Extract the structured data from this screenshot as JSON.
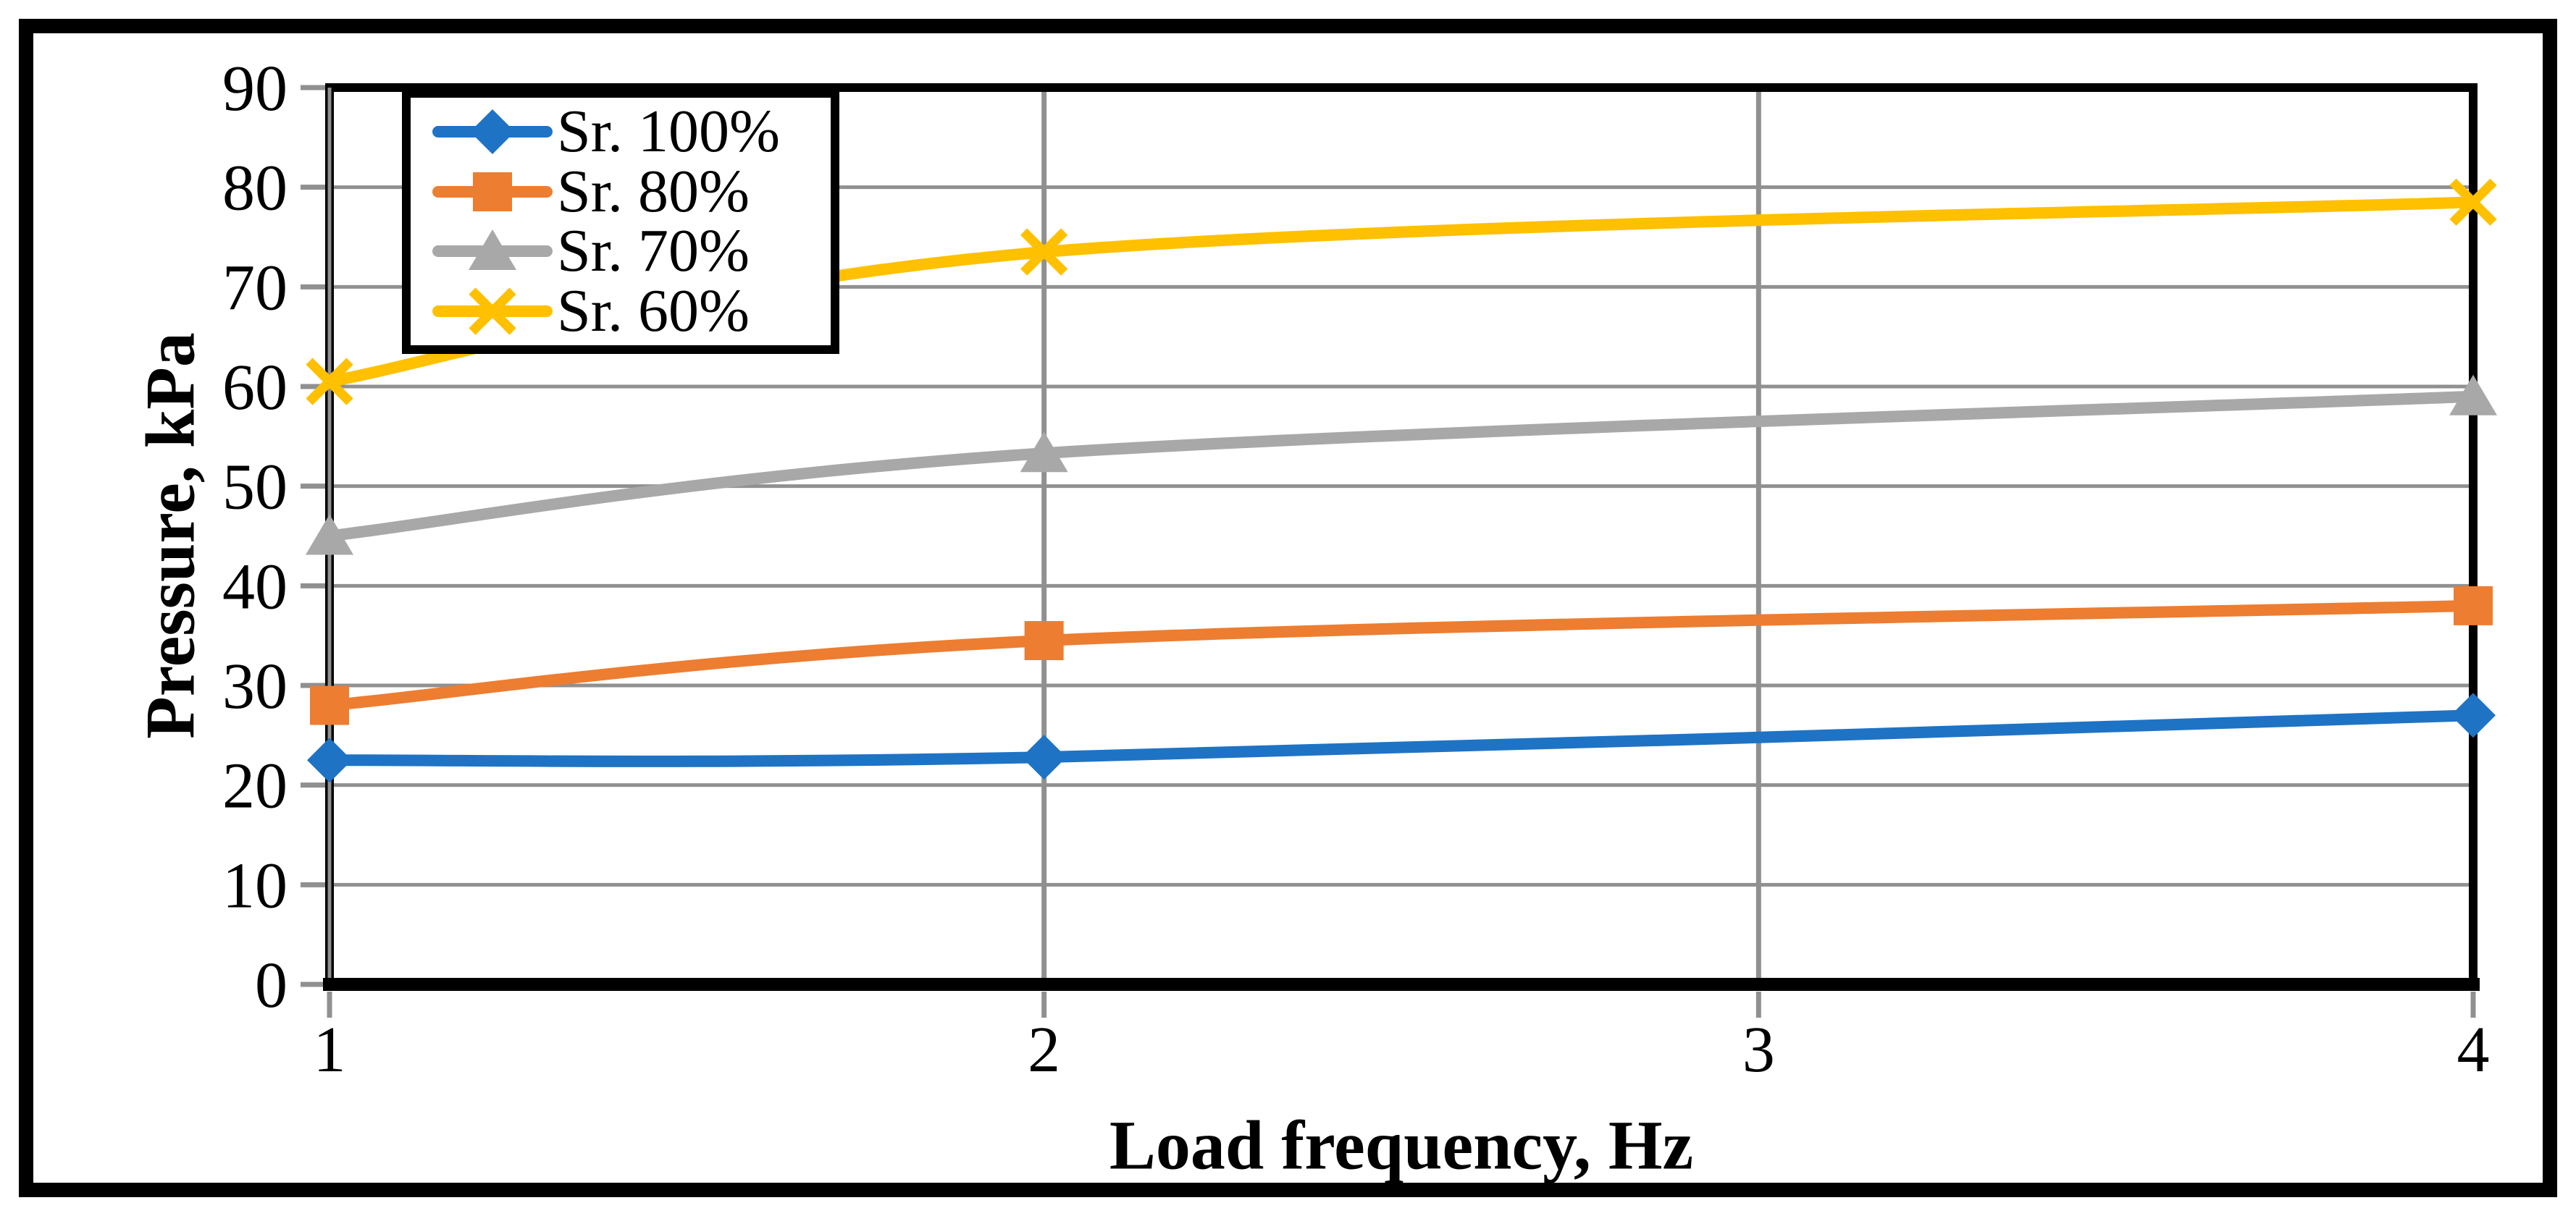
{
  "chart_data": {
    "type": "line",
    "title": "",
    "xlabel": "Load frequency, Hz",
    "ylabel": "Pressure, kPa",
    "x": [
      1,
      2,
      4
    ],
    "xlim": [
      1,
      4
    ],
    "ylim": [
      0,
      90
    ],
    "xticks": [
      1,
      2,
      3,
      4
    ],
    "yticks": [
      0,
      10,
      20,
      30,
      40,
      50,
      60,
      70,
      80,
      90
    ],
    "grid": true,
    "line_style": "smooth",
    "legend_position": "top-left",
    "series": [
      {
        "name": "Sr. 100%",
        "marker": "diamond",
        "color": "#1F73C4",
        "values": [
          22.5,
          22.8,
          27.0
        ]
      },
      {
        "name": "Sr. 80%",
        "marker": "square",
        "color": "#ED7D31",
        "values": [
          28.0,
          34.5,
          38.0
        ]
      },
      {
        "name": "Sr. 70%",
        "marker": "triangle",
        "color": "#A8A8A8",
        "values": [
          45.0,
          53.3,
          59.0
        ]
      },
      {
        "name": "Sr. 60%",
        "marker": "x",
        "color": "#FFC000",
        "values": [
          60.5,
          73.5,
          78.5
        ]
      }
    ],
    "colors": {
      "background": "#FFFFFF",
      "outer_frame": "#000000",
      "plot_border": "#000000",
      "axis_line": "#000000",
      "gridline": "#909090",
      "tick": "#909090",
      "text": "#000000"
    }
  }
}
